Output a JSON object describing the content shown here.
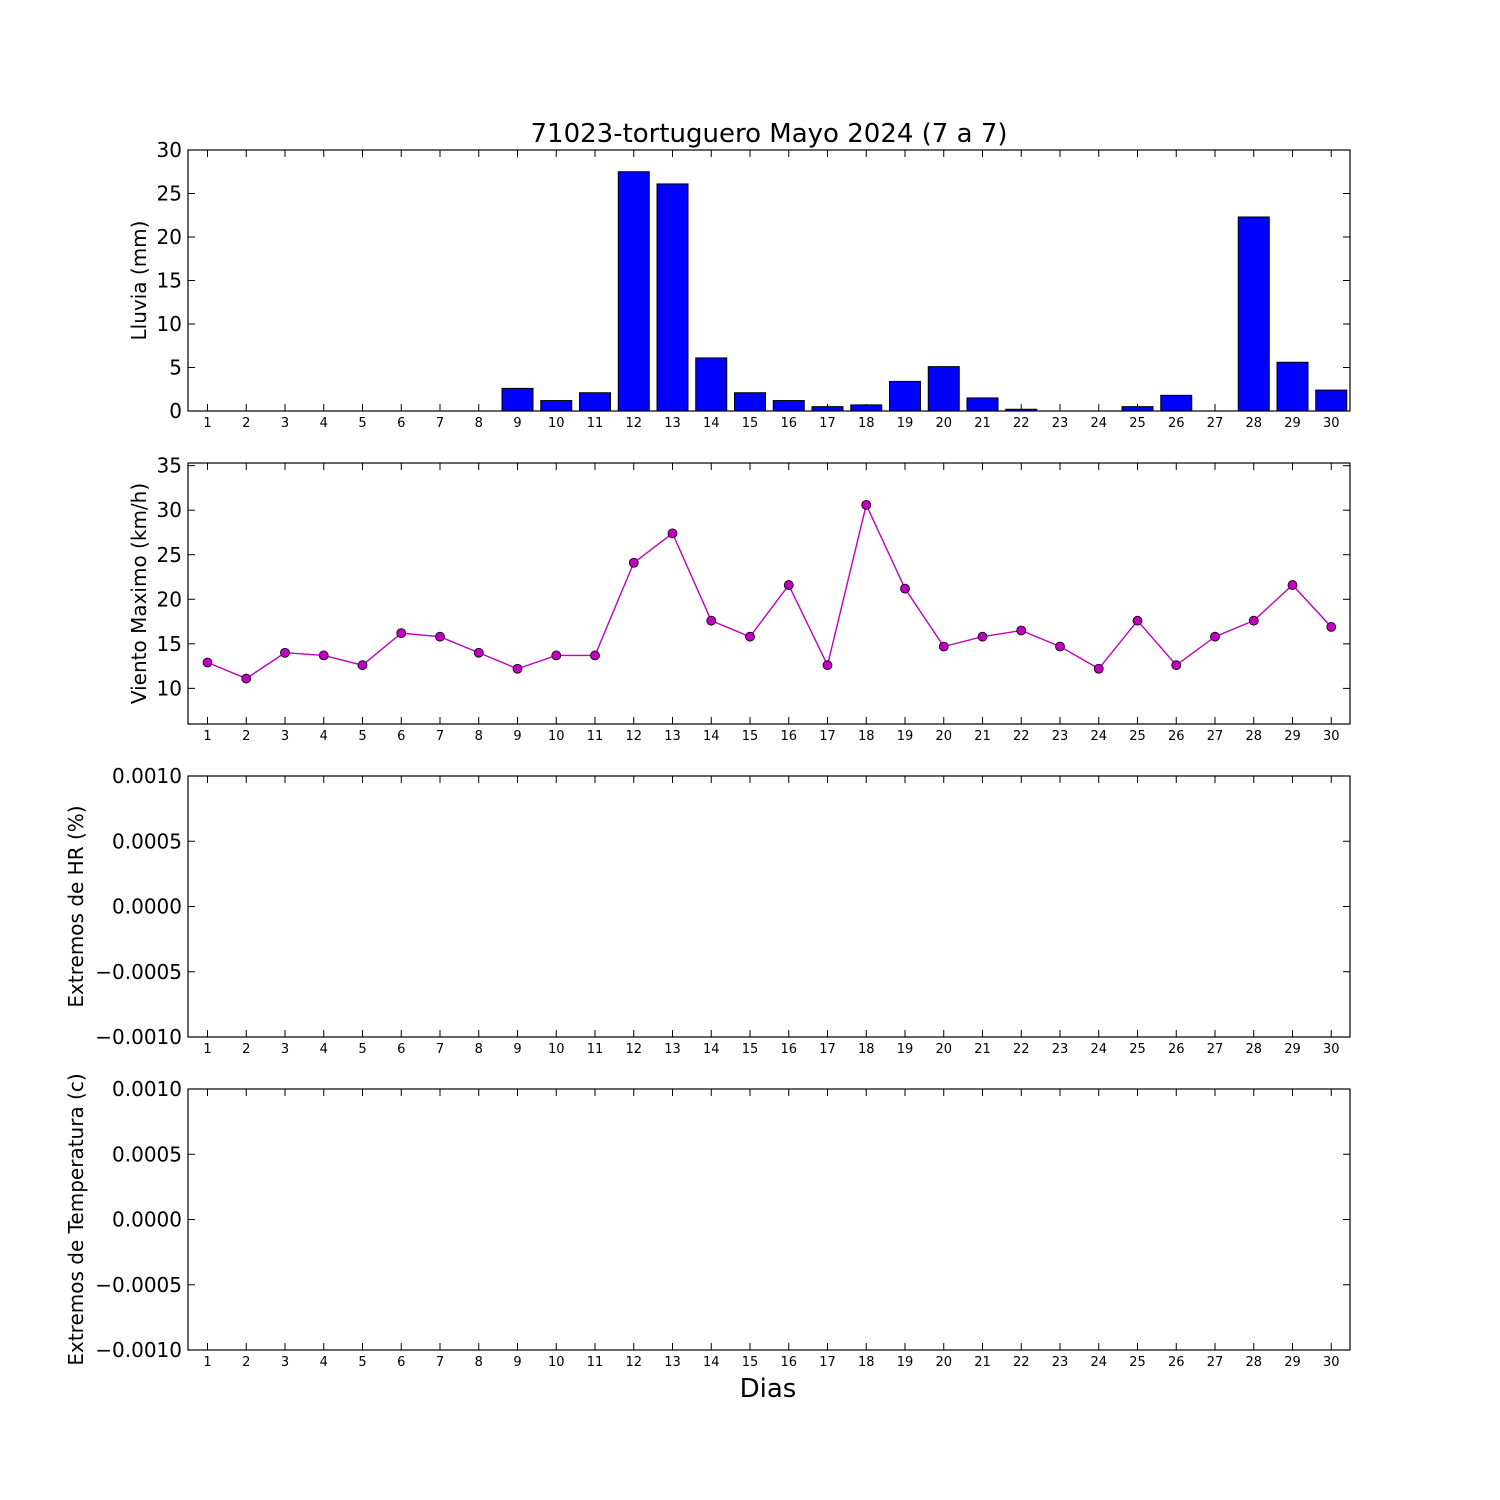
{
  "chart_data": {
    "title": "71023-tortuguero Mayo 2024  (7 a 7)",
    "xlabel": "Dias",
    "categories": [
      "1",
      "2",
      "3",
      "4",
      "5",
      "6",
      "7",
      "8",
      "9",
      "10",
      "11",
      "12",
      "13",
      "14",
      "15",
      "16",
      "17",
      "18",
      "19",
      "20",
      "21",
      "22",
      "23",
      "24",
      "25",
      "26",
      "27",
      "28",
      "29",
      "30"
    ],
    "panels": [
      {
        "id": "lluvia",
        "type": "bar",
        "ylabel": "Lluvia (mm)",
        "ylim": [
          0,
          30
        ],
        "yticks": [
          0,
          5,
          10,
          15,
          20,
          25,
          30
        ],
        "ytick_labels": [
          "0",
          "5",
          "10",
          "15",
          "20",
          "25",
          "30"
        ],
        "color": "#0000ff",
        "values": [
          0,
          0,
          0,
          0,
          0,
          0,
          0,
          0,
          2.6,
          1.2,
          2.1,
          27.5,
          26.1,
          6.1,
          2.1,
          1.2,
          0.5,
          0.7,
          3.4,
          5.1,
          1.5,
          0.2,
          0,
          0,
          0.5,
          1.8,
          0,
          22.3,
          5.6,
          2.4
        ]
      },
      {
        "id": "viento",
        "type": "line",
        "ylabel": "Viento Maximo (km/h)",
        "ylim": [
          6,
          35.3
        ],
        "yticks": [
          10,
          15,
          20,
          25,
          30,
          35
        ],
        "ytick_labels": [
          "10",
          "15",
          "20",
          "25",
          "30",
          "35"
        ],
        "color": "#bf00bf",
        "values": [
          12.9,
          11.1,
          14.0,
          13.7,
          12.6,
          16.2,
          15.8,
          14.0,
          12.2,
          13.7,
          13.7,
          24.1,
          27.4,
          17.6,
          15.8,
          21.6,
          12.6,
          30.6,
          21.2,
          14.7,
          15.8,
          16.5,
          14.7,
          12.2,
          17.6,
          12.6,
          15.8,
          17.6,
          21.6,
          16.9
        ]
      },
      {
        "id": "hr",
        "type": "line",
        "ylabel": "Extremos de HR (%)",
        "ylim": [
          -0.001,
          0.001
        ],
        "yticks": [
          -0.001,
          -0.0005,
          0,
          0.0005,
          0.001
        ],
        "ytick_labels": [
          "−0.0010",
          "−0.0005",
          "0.0000",
          "0.0005",
          "0.0010"
        ],
        "values": []
      },
      {
        "id": "temperatura",
        "type": "line",
        "ylabel": "Extremos de Temperatura (c)",
        "ylim": [
          -0.001,
          0.001
        ],
        "yticks": [
          -0.001,
          -0.0005,
          0,
          0.0005,
          0.001
        ],
        "ytick_labels": [
          "−0.0010",
          "−0.0005",
          "0.0000",
          "0.0005",
          "0.0010"
        ],
        "values": []
      }
    ]
  }
}
